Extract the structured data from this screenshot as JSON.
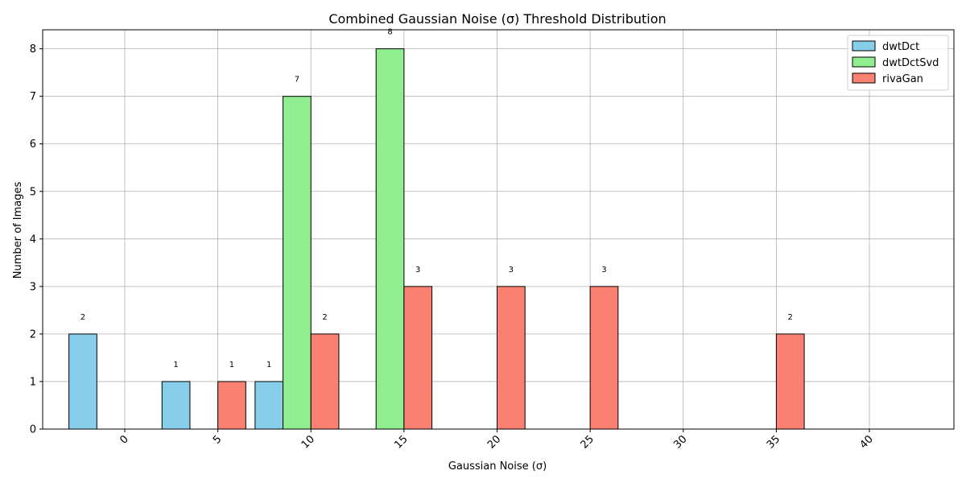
{
  "chart_data": {
    "type": "bar",
    "title": "Combined Gaussian Noise (σ) Threshold Distribution",
    "xlabel": "Gaussian Noise (σ)",
    "ylabel": "Number of Images",
    "categories": [
      "0",
      "5",
      "10",
      "15",
      "20",
      "25",
      "30",
      "35",
      "40"
    ],
    "series": [
      {
        "name": "dwtDct",
        "color": "#87CEEB",
        "values": [
          2,
          1,
          1,
          0,
          0,
          0,
          0,
          0,
          0
        ]
      },
      {
        "name": "dwtDctSvd",
        "color": "#90EE90",
        "values": [
          0,
          0,
          7,
          8,
          0,
          0,
          0,
          0,
          0
        ]
      },
      {
        "name": "rivaGan",
        "color": "#FA8072",
        "values": [
          0,
          1,
          2,
          3,
          3,
          3,
          0,
          2,
          0
        ]
      }
    ],
    "ylim": [
      0,
      8.4
    ],
    "yticks": [
      0,
      1,
      2,
      3,
      4,
      5,
      6,
      7,
      8
    ],
    "grid": true,
    "legend_position": "top-right"
  }
}
